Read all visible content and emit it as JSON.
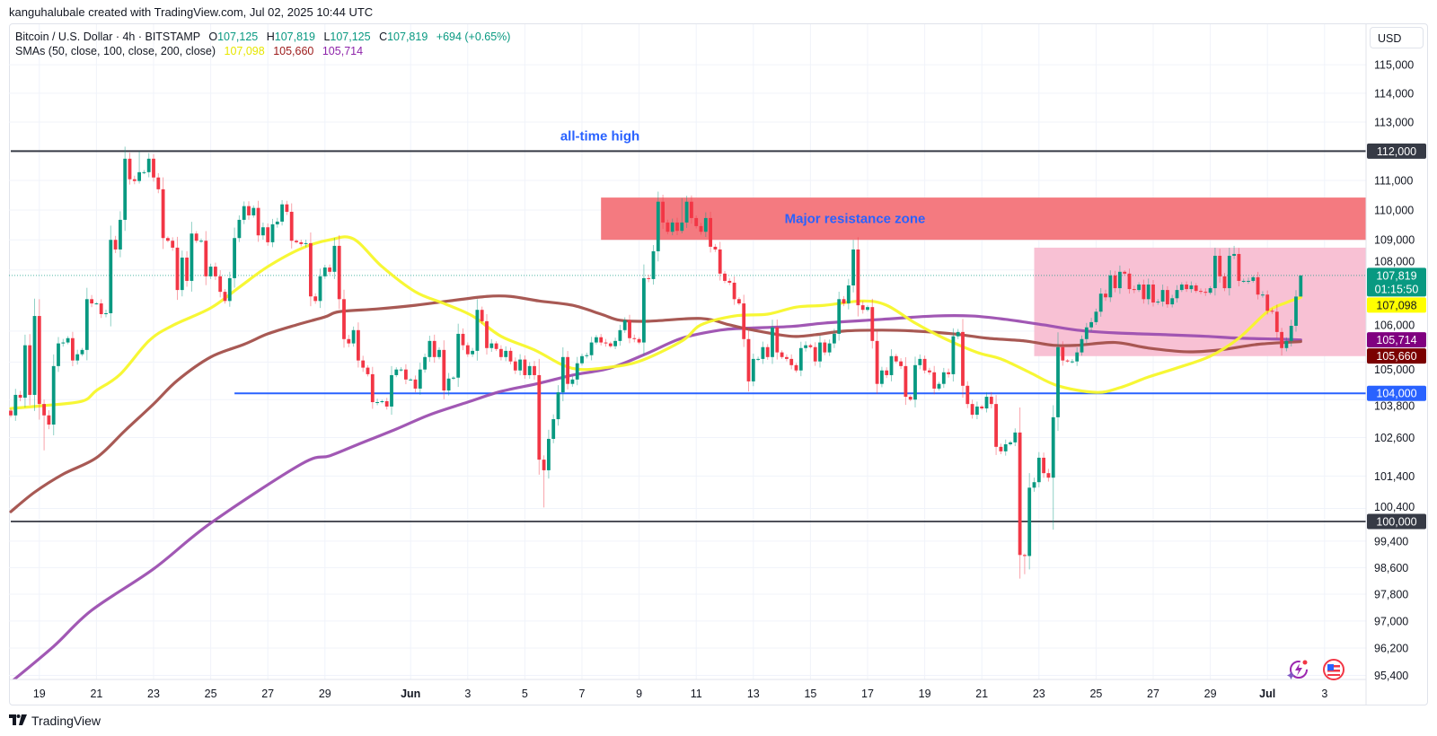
{
  "credit": "kanguhalubale created with TradingView.com, Jul 02, 2025 10:44 UTC",
  "legend": {
    "symbol": "Bitcoin / U.S. Dollar · 4h · BITSTAMP",
    "o_label": "O",
    "o": "107,125",
    "h_label": "H",
    "h": "107,819",
    "l_label": "L",
    "l": "107,125",
    "c_label": "C",
    "c": "107,819",
    "change": "+694 (+0.65%)",
    "sma_title": "SMAs (50, close, 100, close, 200, close)",
    "sma50": "107,098",
    "sma100": "105,660",
    "sma200": "105,714"
  },
  "currency_button": "USD",
  "footer_logo": "TradingView",
  "icons": [
    "sparkle-lightning-icon",
    "us-flag-icon"
  ],
  "colors": {
    "up": "#089981",
    "down": "#f23645",
    "sma50": "#f7f72a",
    "sma100": "#a3504b",
    "sma200": "#9c4fb0",
    "blue": "#2962ff",
    "dark": "#363a45",
    "resistance": "#f47a80",
    "range": "#f8c1d4"
  },
  "chart_data": {
    "type": "candlestick",
    "title": "Bitcoin / U.S. Dollar · 4h · BITSTAMP",
    "interval_hours": 4,
    "start": "May 18 00:00",
    "y_scale": "log",
    "ylim": [
      95000,
      115600
    ],
    "first_open": 103450,
    "close": [
      103300,
      103950,
      103860,
      105540,
      103950,
      106490,
      103660,
      103300,
      103010,
      104870,
      105600,
      105630,
      105770,
      105050,
      105250,
      105390,
      107040,
      106900,
      106900,
      106550,
      106580,
      109000,
      108680,
      109670,
      111740,
      111040,
      110980,
      111280,
      111280,
      111740,
      111100,
      110700,
      109060,
      108970,
      108740,
      107340,
      108410,
      107640,
      109210,
      108970,
      108970,
      107790,
      108110,
      107790,
      107280,
      106980,
      107730,
      109060,
      109670,
      110130,
      109820,
      110070,
      109150,
      109420,
      108920,
      109520,
      109610,
      110190,
      109940,
      108970,
      108920,
      108860,
      108890,
      107130,
      106980,
      107790,
      108080,
      107940,
      108800,
      107040,
      105740,
      105600,
      106030,
      105050,
      104820,
      104610,
      103720,
      103720,
      103750,
      103580,
      104580,
      104760,
      104760,
      104440,
      104440,
      104150,
      104760,
      105160,
      105680,
      105160,
      105390,
      104090,
      104470,
      104500,
      105910,
      105540,
      105250,
      105360,
      106690,
      106320,
      105450,
      105600,
      105420,
      105160,
      105360,
      105020,
      104730,
      105080,
      104580,
      104870,
      104580,
      101910,
      101580,
      102560,
      103180,
      104030,
      105160,
      104300,
      104440,
      104960,
      105190,
      105220,
      105630,
      105800,
      105630,
      105600,
      105510,
      105680,
      106030,
      106350,
      105770,
      105740,
      105630,
      107730,
      107700,
      108620,
      110280,
      109580,
      109270,
      109580,
      109300,
      109580,
      110280,
      109730,
      109460,
      109270,
      109730,
      108770,
      108680,
      107880,
      107640,
      107580,
      107040,
      106900,
      105740,
      104380,
      105100,
      105100,
      105480,
      105160,
      106120,
      105310,
      105160,
      105100,
      104900,
      104730,
      105450,
      105540,
      105480,
      105020,
      105630,
      105310,
      105600,
      105910,
      107040,
      106900,
      107490,
      108680,
      106840,
      106690,
      106780,
      105680,
      104300,
      104730,
      104580,
      105190,
      105020,
      104870,
      103890,
      103800,
      104900,
      105100,
      104730,
      104670,
      104150,
      104300,
      104670,
      104610,
      105830,
      105970,
      104240,
      103660,
      103320,
      103580,
      103520,
      103890,
      103660,
      102310,
      102170,
      102390,
      102450,
      102760,
      98980,
      98950,
      101040,
      101210,
      101970,
      101490,
      101350,
      103240,
      105480,
      105050,
      105020,
      105020,
      105310,
      105740,
      106120,
      106290,
      106630,
      107220,
      107100,
      107820,
      107400,
      107940,
      107880,
      107370,
      107340,
      107520,
      107040,
      107520,
      106930,
      106960,
      107340,
      106870,
      107070,
      107340,
      107520,
      107370,
      107490,
      107310,
      107280,
      107250,
      107400,
      108470,
      107790,
      107400,
      108470,
      108530,
      107640,
      107640,
      107640,
      107760,
      107190,
      107190,
      106660,
      106630,
      105970,
      105450,
      105680,
      106170,
      107125,
      107819
    ],
    "wick_extremes": [
      {
        "index": 7,
        "low": 102200
      },
      {
        "index": 27,
        "high": 111990
      },
      {
        "index": 112,
        "low": 100430
      },
      {
        "index": 136,
        "high": 110620
      },
      {
        "index": 141,
        "high": 110400
      },
      {
        "index": 177,
        "high": 109000
      },
      {
        "index": 213,
        "low": 98400
      },
      {
        "index": 219,
        "low": 99750
      },
      {
        "index": 257,
        "high": 108800
      },
      {
        "index": 267,
        "low": 105210
      },
      {
        "index": 271,
        "high": 107819,
        "low": 107125
      }
    ],
    "sma": [
      {
        "name": "SMA 50",
        "last": 107098,
        "points": [
          [
            0,
            103520
          ],
          [
            7,
            103610
          ],
          [
            15,
            103750
          ],
          [
            18,
            104090
          ],
          [
            23,
            104610
          ],
          [
            29,
            105680
          ],
          [
            34,
            106180
          ],
          [
            42,
            106750
          ],
          [
            48,
            107430
          ],
          [
            54,
            108110
          ],
          [
            61,
            108710
          ],
          [
            67,
            109000
          ],
          [
            72,
            109030
          ],
          [
            78,
            108110
          ],
          [
            85,
            107280
          ],
          [
            91,
            106900
          ],
          [
            97,
            106490
          ],
          [
            103,
            105830
          ],
          [
            110,
            105390
          ],
          [
            116,
            104900
          ],
          [
            120,
            104760
          ],
          [
            125,
            104820
          ],
          [
            132,
            105020
          ],
          [
            141,
            105680
          ],
          [
            145,
            106200
          ],
          [
            152,
            106490
          ],
          [
            159,
            106550
          ],
          [
            165,
            106780
          ],
          [
            171,
            106840
          ],
          [
            179,
            106980
          ],
          [
            184,
            106840
          ],
          [
            190,
            106260
          ],
          [
            196,
            105770
          ],
          [
            203,
            105310
          ],
          [
            208,
            105100
          ],
          [
            214,
            104670
          ],
          [
            220,
            104240
          ],
          [
            228,
            104030
          ],
          [
            233,
            104180
          ],
          [
            239,
            104520
          ],
          [
            245,
            104810
          ],
          [
            252,
            105190
          ],
          [
            258,
            105770
          ],
          [
            264,
            106630
          ],
          [
            268,
            106930
          ],
          [
            271,
            107098
          ]
        ]
      },
      {
        "name": "SMA 100",
        "last": 105660,
        "points": [
          [
            0,
            100300
          ],
          [
            5,
            100900
          ],
          [
            11,
            101460
          ],
          [
            18,
            101970
          ],
          [
            24,
            102820
          ],
          [
            30,
            103660
          ],
          [
            35,
            104410
          ],
          [
            42,
            105160
          ],
          [
            49,
            105570
          ],
          [
            54,
            105910
          ],
          [
            60,
            106200
          ],
          [
            66,
            106460
          ],
          [
            69,
            106630
          ],
          [
            77,
            106720
          ],
          [
            85,
            106840
          ],
          [
            92,
            106980
          ],
          [
            100,
            107130
          ],
          [
            105,
            107130
          ],
          [
            111,
            106980
          ],
          [
            118,
            106840
          ],
          [
            124,
            106550
          ],
          [
            128,
            106350
          ],
          [
            134,
            106320
          ],
          [
            145,
            106410
          ],
          [
            151,
            106200
          ],
          [
            156,
            106030
          ],
          [
            164,
            105830
          ],
          [
            169,
            105880
          ],
          [
            175,
            106000
          ],
          [
            183,
            106030
          ],
          [
            190,
            106000
          ],
          [
            198,
            105910
          ],
          [
            205,
            105770
          ],
          [
            213,
            105680
          ],
          [
            219,
            105540
          ],
          [
            224,
            105540
          ],
          [
            232,
            105630
          ],
          [
            239,
            105450
          ],
          [
            247,
            105330
          ],
          [
            254,
            105390
          ],
          [
            262,
            105570
          ],
          [
            271,
            105660
          ]
        ]
      },
      {
        "name": "SMA 200",
        "last": 105714,
        "points": [
          [
            0,
            95200
          ],
          [
            9,
            96250
          ],
          [
            17,
            97320
          ],
          [
            30,
            98560
          ],
          [
            42,
            99950
          ],
          [
            61,
            101770
          ],
          [
            67,
            102030
          ],
          [
            73,
            102390
          ],
          [
            81,
            102870
          ],
          [
            88,
            103320
          ],
          [
            96,
            103720
          ],
          [
            103,
            104060
          ],
          [
            111,
            104320
          ],
          [
            118,
            104580
          ],
          [
            126,
            104810
          ],
          [
            134,
            105300
          ],
          [
            141,
            105770
          ],
          [
            149,
            106030
          ],
          [
            154,
            106090
          ],
          [
            164,
            106150
          ],
          [
            171,
            106260
          ],
          [
            183,
            106380
          ],
          [
            194,
            106490
          ],
          [
            202,
            106490
          ],
          [
            209,
            106380
          ],
          [
            217,
            106200
          ],
          [
            224,
            106030
          ],
          [
            232,
            105940
          ],
          [
            243,
            105880
          ],
          [
            251,
            105830
          ],
          [
            258,
            105770
          ],
          [
            266,
            105740
          ],
          [
            271,
            105714
          ]
        ]
      }
    ],
    "levels": [
      {
        "name": "all-time-high",
        "price": 112000,
        "label": "112,000",
        "start_index": 0
      },
      {
        "name": "support",
        "price": 104000,
        "label": "104,000",
        "start_index": 47
      },
      {
        "name": "psychological",
        "price": 100000,
        "label": "100,000",
        "start_index": 0
      }
    ],
    "zones": [
      {
        "name": "resistance-zone",
        "from": 109000,
        "to": 110420,
        "start_index": 124,
        "label": "Major resistance zone"
      },
      {
        "name": "range-zone",
        "from": 105190,
        "to": 108740,
        "start_index": 215
      }
    ],
    "annotations": {
      "ath_text": "all-time high"
    },
    "last_price": {
      "price": 107819,
      "label": "107,819",
      "countdown": "01:15:50"
    },
    "axis_badges": [
      {
        "name": "sma50",
        "label": "107,098",
        "price": 107098
      },
      {
        "name": "sma200",
        "label": "105,714",
        "price": 105714
      },
      {
        "name": "sma100",
        "label": "105,660",
        "price": 105660
      }
    ],
    "y_ticks": [
      {
        "p": 115000,
        "t": "115,000"
      },
      {
        "p": 114000,
        "t": "114,000"
      },
      {
        "p": 113000,
        "t": "113,000"
      },
      {
        "p": 111000,
        "t": "111,000"
      },
      {
        "p": 110000,
        "t": "110,000"
      },
      {
        "p": 109000,
        "t": "109,000"
      },
      {
        "p": 108000,
        "t": "108,000"
      },
      {
        "p": 106000,
        "t": "106,000"
      },
      {
        "p": 105000,
        "t": "105,000"
      },
      {
        "p": 103800,
        "t": "103,800"
      },
      {
        "p": 102600,
        "t": "102,600"
      },
      {
        "p": 101400,
        "t": "101,400"
      },
      {
        "p": 100400,
        "t": "100,400"
      },
      {
        "p": 99400,
        "t": "99,400"
      },
      {
        "p": 98600,
        "t": "98,600"
      },
      {
        "p": 97800,
        "t": "97,800"
      },
      {
        "p": 97000,
        "t": "97,000"
      },
      {
        "p": 96200,
        "t": "96,200"
      },
      {
        "p": 95400,
        "t": "95,400"
      }
    ],
    "x_ticks": [
      {
        "d": 1,
        "t": "19"
      },
      {
        "d": 3,
        "t": "21"
      },
      {
        "d": 5,
        "t": "23"
      },
      {
        "d": 7,
        "t": "25"
      },
      {
        "d": 9,
        "t": "27"
      },
      {
        "d": 11,
        "t": "29"
      },
      {
        "d": 14,
        "t": "Jun",
        "bold": true
      },
      {
        "d": 16,
        "t": "3"
      },
      {
        "d": 18,
        "t": "5"
      },
      {
        "d": 20,
        "t": "7"
      },
      {
        "d": 22,
        "t": "9"
      },
      {
        "d": 24,
        "t": "11"
      },
      {
        "d": 26,
        "t": "13"
      },
      {
        "d": 28,
        "t": "15"
      },
      {
        "d": 30,
        "t": "17"
      },
      {
        "d": 32,
        "t": "19"
      },
      {
        "d": 34,
        "t": "21"
      },
      {
        "d": 36,
        "t": "23"
      },
      {
        "d": 38,
        "t": "25"
      },
      {
        "d": 40,
        "t": "27"
      },
      {
        "d": 42,
        "t": "29"
      },
      {
        "d": 44,
        "t": "Jul",
        "bold": true
      },
      {
        "d": 46,
        "t": "3"
      }
    ]
  }
}
